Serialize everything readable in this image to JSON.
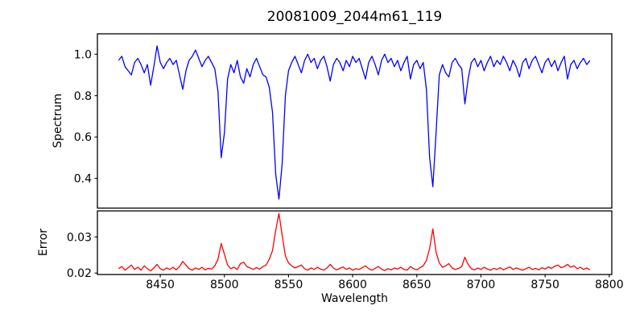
{
  "title": "20081009_2044m61_119",
  "colors": {
    "spectrum_line": "#0000ff",
    "error_line": "#ff0000",
    "axis": "#000000",
    "background": "#ffffff"
  },
  "chart_data": {
    "type": "line",
    "title": "20081009_2044m61_119",
    "xlabel": "Wavelength",
    "xlim": [
      8401,
      8802
    ],
    "xticks": [
      8450,
      8500,
      8550,
      8600,
      8650,
      8700,
      8750,
      8800
    ],
    "x_start": 8417.5,
    "x_step": 2.5,
    "grid": false,
    "legend": "none",
    "subplots": [
      {
        "name": "spectrum",
        "ylabel": "Spectrum",
        "line_color": "#0000ff",
        "ylim": [
          0.2565,
          1.0985
        ],
        "yticks": [
          0.4,
          0.6,
          0.8,
          1.0
        ],
        "ytick_labels": [
          "0.4",
          "0.6",
          "0.8",
          "1.0"
        ],
        "values": [
          0.97,
          0.99,
          0.94,
          0.92,
          0.9,
          0.96,
          0.98,
          0.95,
          0.91,
          0.95,
          0.85,
          0.94,
          1.04,
          0.96,
          0.93,
          0.96,
          0.98,
          0.95,
          0.97,
          0.9,
          0.83,
          0.92,
          0.97,
          0.99,
          1.02,
          0.98,
          0.94,
          0.97,
          0.99,
          0.96,
          0.93,
          0.82,
          0.5,
          0.62,
          0.88,
          0.95,
          0.91,
          0.97,
          0.89,
          0.86,
          0.93,
          0.89,
          0.95,
          0.98,
          0.94,
          0.9,
          0.89,
          0.84,
          0.72,
          0.42,
          0.3,
          0.47,
          0.8,
          0.92,
          0.96,
          0.99,
          0.95,
          0.91,
          0.97,
          1.0,
          0.96,
          0.98,
          0.93,
          0.97,
          0.99,
          0.94,
          0.87,
          0.95,
          0.98,
          0.96,
          0.92,
          0.97,
          0.94,
          0.99,
          0.96,
          0.98,
          0.93,
          0.88,
          0.96,
          0.99,
          0.95,
          0.9,
          0.97,
          1.0,
          0.96,
          0.98,
          0.94,
          0.97,
          0.92,
          0.96,
          0.99,
          0.88,
          0.95,
          0.97,
          0.93,
          0.96,
          0.83,
          0.5,
          0.36,
          0.62,
          0.9,
          0.95,
          0.91,
          0.89,
          0.96,
          0.98,
          0.95,
          0.93,
          0.76,
          0.88,
          0.96,
          0.98,
          0.94,
          0.97,
          0.92,
          0.96,
          0.99,
          0.94,
          0.97,
          0.95,
          0.99,
          0.96,
          0.92,
          0.97,
          0.94,
          0.89,
          0.96,
          0.98,
          0.93,
          0.97,
          0.99,
          0.95,
          0.91,
          0.96,
          0.98,
          0.94,
          0.97,
          0.92,
          0.96,
          0.99,
          0.88,
          0.95,
          0.97,
          0.93,
          0.96,
          0.98,
          0.95,
          0.97
        ]
      },
      {
        "name": "error",
        "ylabel": "Error",
        "line_color": "#ff0000",
        "ylim": [
          0.0196,
          0.0372
        ],
        "yticks": [
          0.02,
          0.03
        ],
        "ytick_labels": [
          "0.02",
          "0.03"
        ],
        "values": [
          0.0212,
          0.0218,
          0.0208,
          0.0215,
          0.0222,
          0.021,
          0.0216,
          0.0208,
          0.022,
          0.0212,
          0.0206,
          0.0214,
          0.0224,
          0.0212,
          0.0208,
          0.0214,
          0.021,
          0.0216,
          0.0209,
          0.0218,
          0.0232,
          0.0222,
          0.0212,
          0.0208,
          0.0214,
          0.021,
          0.0216,
          0.0209,
          0.0213,
          0.0211,
          0.022,
          0.0238,
          0.0282,
          0.0252,
          0.0222,
          0.0212,
          0.0216,
          0.021,
          0.0226,
          0.023,
          0.0218,
          0.0214,
          0.021,
          0.0215,
          0.0211,
          0.0218,
          0.0222,
          0.0238,
          0.0262,
          0.0318,
          0.0365,
          0.0305,
          0.0248,
          0.0228,
          0.022,
          0.0214,
          0.0218,
          0.0222,
          0.0212,
          0.0208,
          0.0214,
          0.021,
          0.0216,
          0.0211,
          0.0208,
          0.0214,
          0.0224,
          0.0214,
          0.0209,
          0.0213,
          0.0217,
          0.021,
          0.0214,
          0.0208,
          0.0212,
          0.021,
          0.0215,
          0.022,
          0.0212,
          0.0208,
          0.0213,
          0.0218,
          0.0211,
          0.0207,
          0.0212,
          0.0209,
          0.0214,
          0.0211,
          0.0216,
          0.021,
          0.0208,
          0.0218,
          0.0212,
          0.0209,
          0.0215,
          0.022,
          0.0235,
          0.0268,
          0.0322,
          0.0258,
          0.0228,
          0.0216,
          0.022,
          0.0226,
          0.0214,
          0.021,
          0.0213,
          0.0218,
          0.0244,
          0.0224,
          0.0212,
          0.0209,
          0.0214,
          0.021,
          0.0216,
          0.0211,
          0.0208,
          0.0213,
          0.021,
          0.0215,
          0.0209,
          0.0213,
          0.0217,
          0.021,
          0.0214,
          0.0211,
          0.0208,
          0.0212,
          0.0216,
          0.021,
          0.0213,
          0.0209,
          0.0215,
          0.0211,
          0.0217,
          0.0213,
          0.0219,
          0.0222,
          0.0215,
          0.0218,
          0.0224,
          0.0216,
          0.022,
          0.0212,
          0.0216,
          0.021,
          0.0214,
          0.0209
        ]
      }
    ]
  }
}
